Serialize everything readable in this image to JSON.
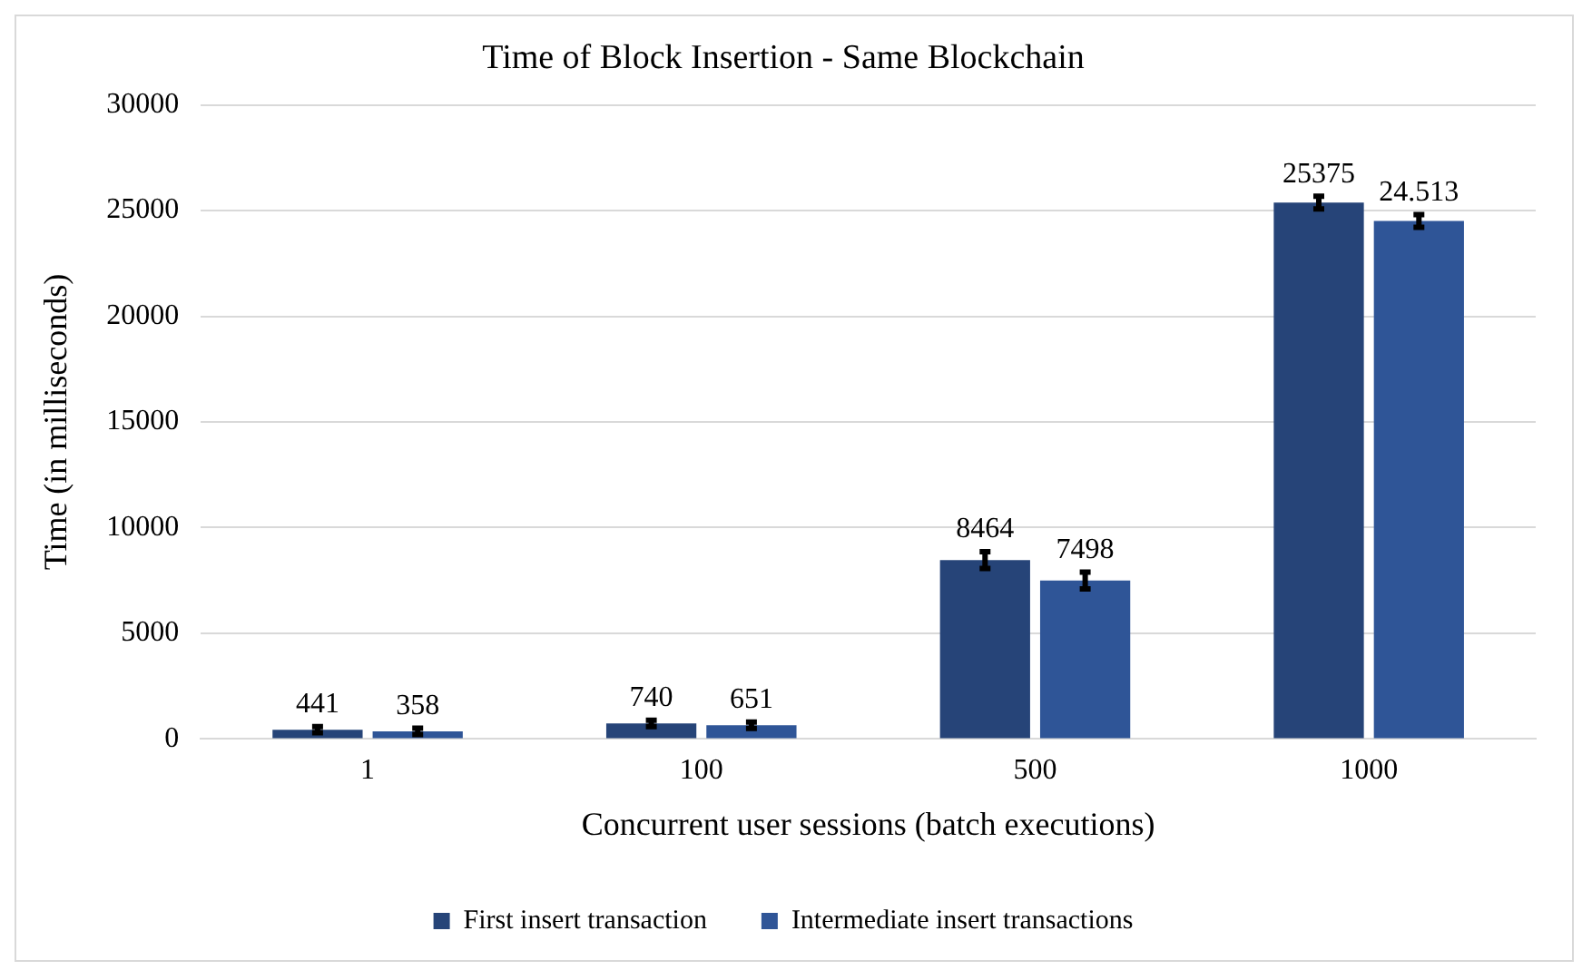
{
  "chart_data": {
    "type": "bar",
    "title": "Time of Block Insertion - Same Blockchain",
    "xlabel": "Concurrent user sessions (batch executions)",
    "ylabel": "Time (in milliseconds)",
    "categories": [
      "1",
      "100",
      "500",
      "1000"
    ],
    "series": [
      {
        "name": "First insert transaction",
        "color": "#264478",
        "values": [
          441,
          740,
          8464,
          25375
        ],
        "errors": [
          150,
          150,
          400,
          300
        ],
        "value_labels": [
          "441",
          "740",
          "8464",
          "25375"
        ]
      },
      {
        "name": "Intermediate insert transactions",
        "color": "#2f5597",
        "values": [
          358,
          651,
          7498,
          24513
        ],
        "errors": [
          150,
          150,
          400,
          300
        ],
        "value_labels": [
          "358",
          "651",
          "7498",
          "24.513"
        ]
      }
    ],
    "ylim": [
      0,
      30000
    ],
    "yticks": [
      0,
      5000,
      10000,
      15000,
      20000,
      25000,
      30000
    ],
    "grid": "y",
    "legend": "bottom"
  }
}
